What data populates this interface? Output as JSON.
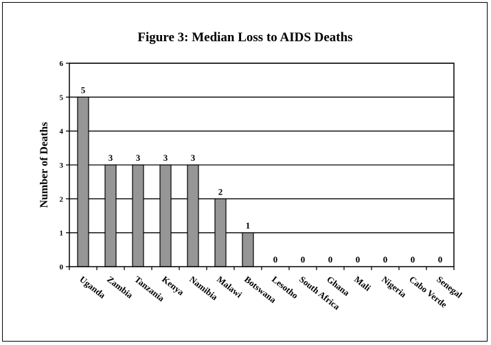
{
  "chart_data": {
    "type": "bar",
    "title": "Figure 3: Median Loss to AIDS Deaths",
    "xlabel": "",
    "ylabel": "Number of Deaths",
    "categories": [
      "Uganda",
      "Zambia",
      "Tanzania",
      "Kenya",
      "Namibia",
      "Malawi",
      "Botswana",
      "Lesotho",
      "South Africa",
      "Ghana",
      "Mali",
      "Nigeria",
      "Cabo Verde",
      "Senegal"
    ],
    "values": [
      5,
      3,
      3,
      3,
      3,
      2,
      1,
      0,
      0,
      0,
      0,
      0,
      0,
      0
    ],
    "data_labels": [
      "5",
      "3",
      "3",
      "3",
      "3",
      "2",
      "1",
      "0",
      "0",
      "0",
      "0",
      "0",
      "0",
      "0"
    ],
    "ylim": [
      0,
      6
    ],
    "yticks": [
      "0",
      "1",
      "2",
      "3",
      "4",
      "5",
      "6"
    ],
    "grid": true,
    "legend": "none",
    "colors": {
      "bar": "#969696",
      "bar_edge": "#000000",
      "grid": "#000000"
    }
  }
}
